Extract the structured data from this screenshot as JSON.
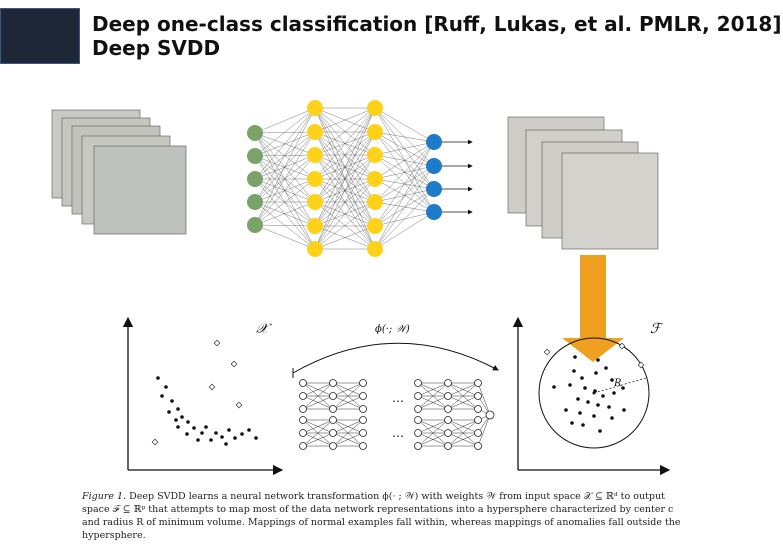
{
  "header": {
    "title_line1": "Deep one-class classification [Ruff, Lukas, et al. PMLR, 2018]",
    "title_line2": "Deep SVDD"
  },
  "figure": {
    "input_space_label": "𝒳",
    "output_space_label": "ℱ",
    "mapping_label": "ϕ(·; 𝒲)",
    "radius_label": "R",
    "ellipsis": "⋯",
    "arrow_color": "#f0a020",
    "input_layer_color": "#7aa36a",
    "hidden_layer_color": "#ffd21a",
    "output_layer_color": "#1e7bc8"
  },
  "caption": {
    "label": "Figure 1.",
    "text": "Deep SVDD learns a neural network transformation ϕ(· ; 𝒲) with weights 𝒲 from input space 𝒳 ⊆ ℝᵈ to output space ℱ ⊆ ℝᵖ that attempts to map most of the data network representations into a hypersphere characterized by center c and radius R of minimum volume. Mappings of normal examples fall within, whereas mappings of anomalies fall outside the hypersphere."
  }
}
